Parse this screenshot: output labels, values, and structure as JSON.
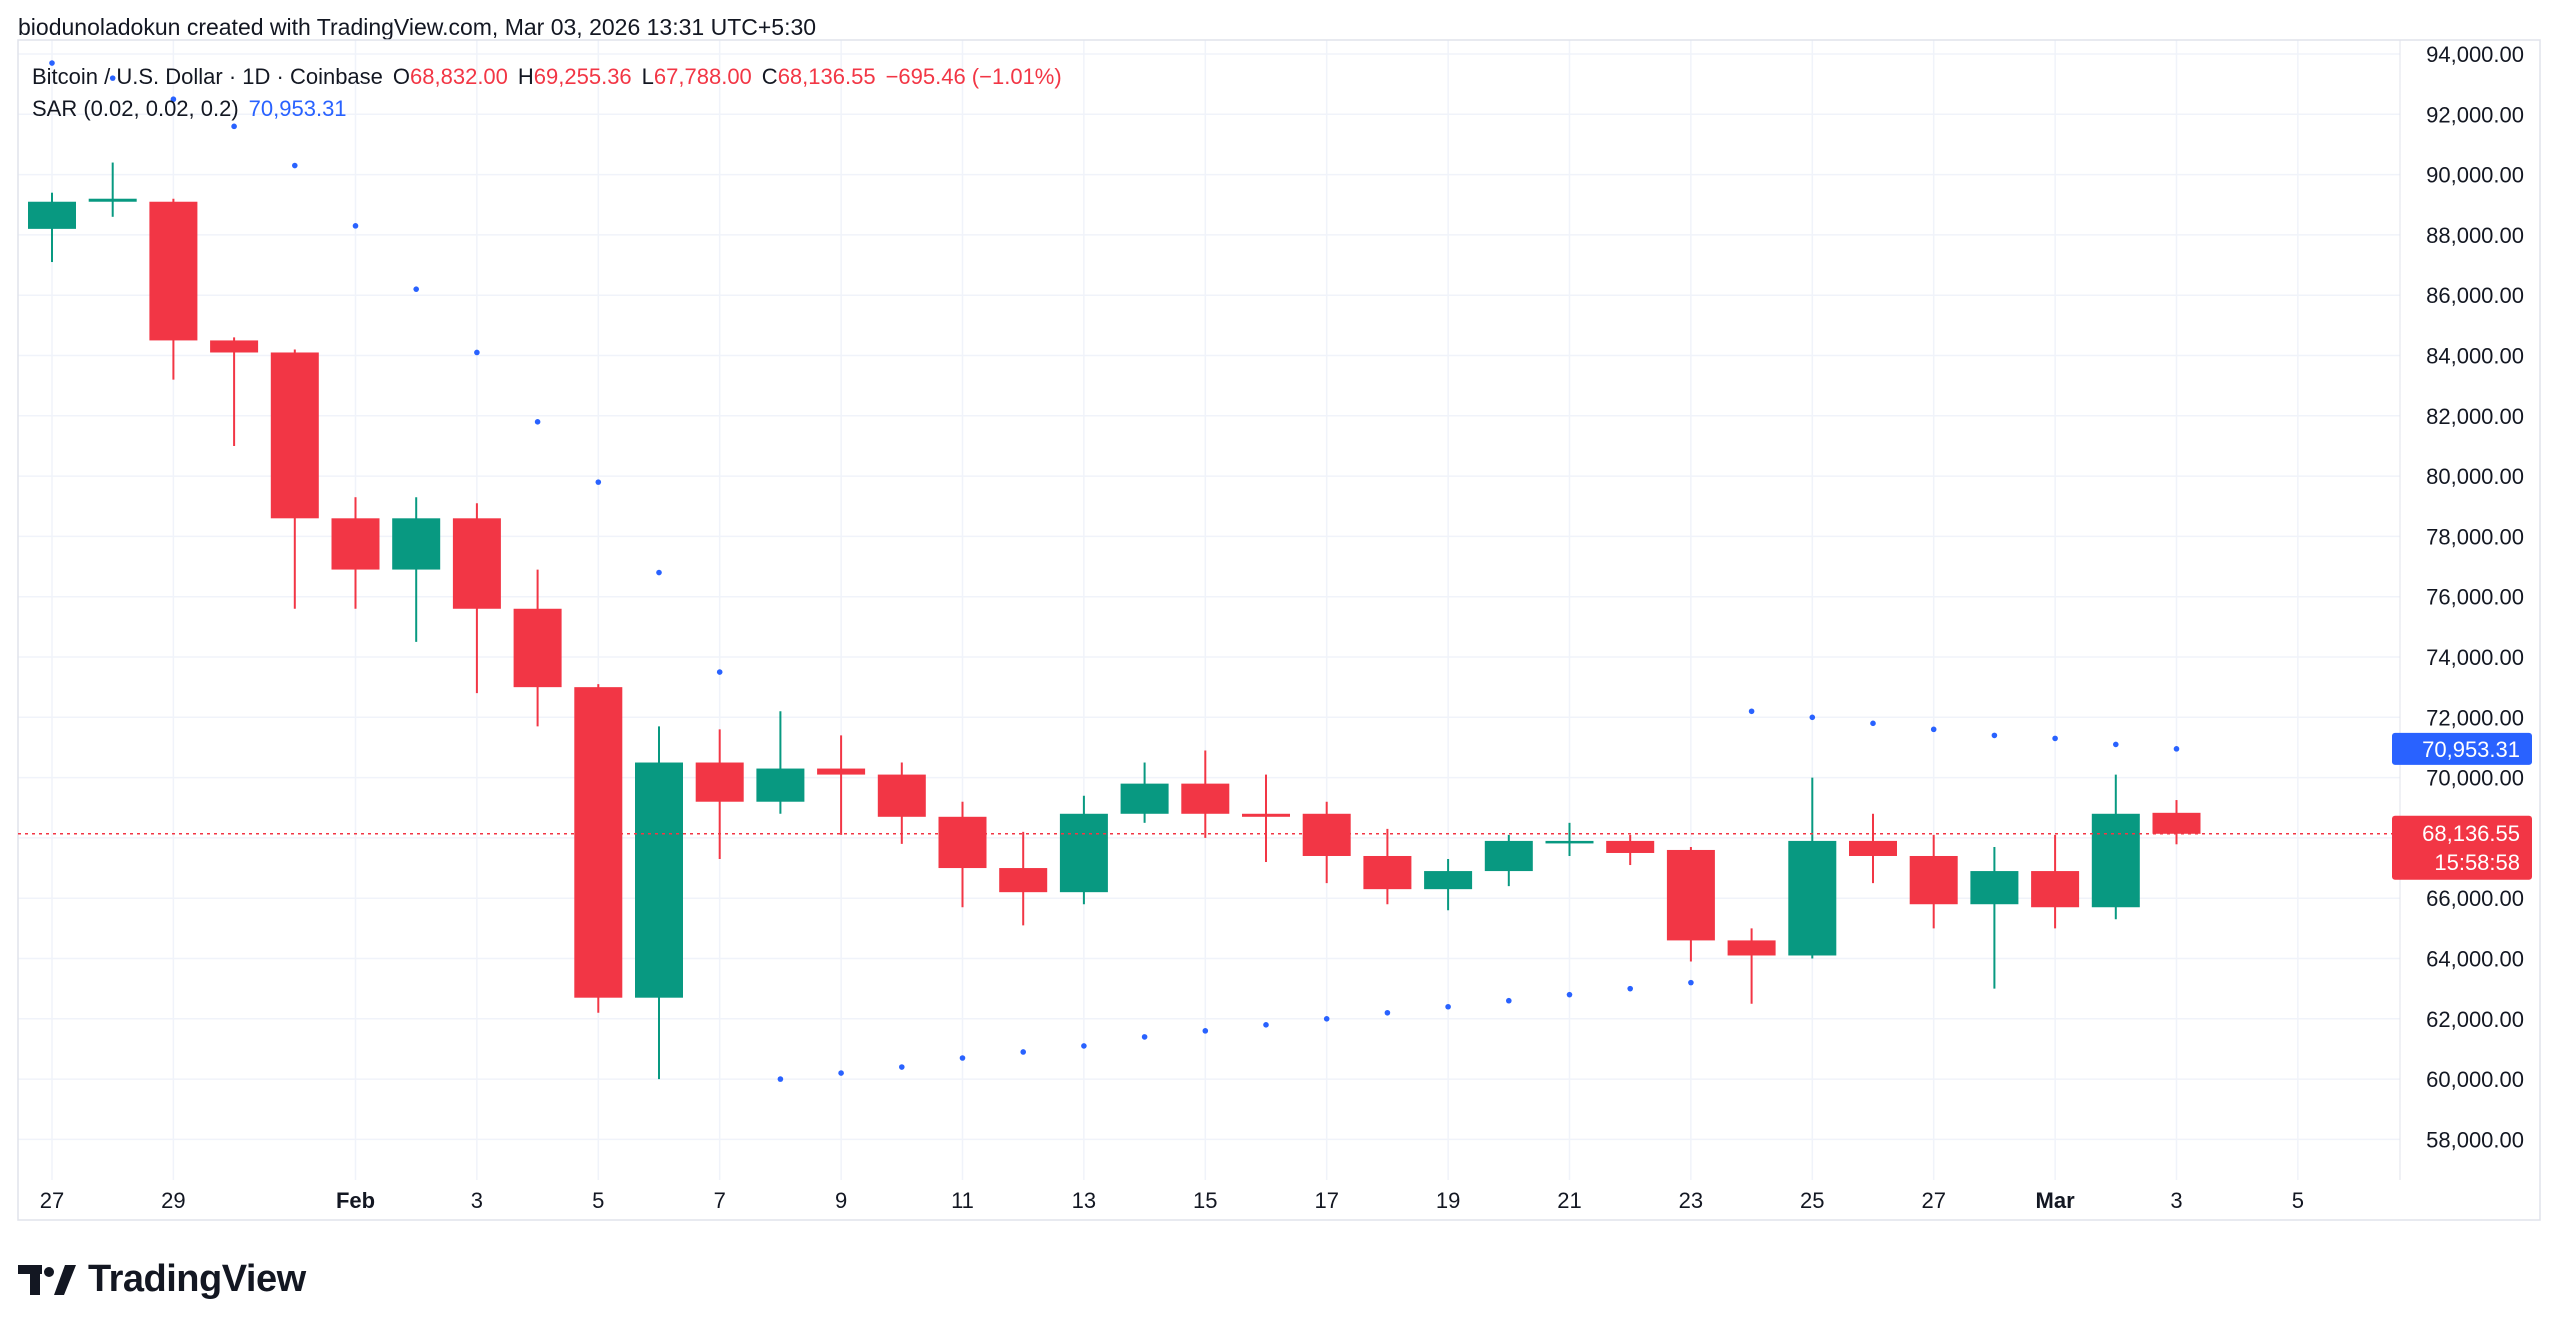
{
  "attribution": "biodunoladokun created with TradingView.com, Mar 03, 2026 13:31 UTC+5:30",
  "legend": {
    "symbol": "Bitcoin / U.S. Dollar · 1D · Coinbase",
    "o_label": "O",
    "o_value": "68,832.00",
    "h_label": "H",
    "h_value": "69,255.36",
    "l_label": "L",
    "l_value": "67,788.00",
    "c_label": "C",
    "c_value": "68,136.55",
    "change": "−695.46 (−1.01%)",
    "indicator": "SAR (0.02, 0.02, 0.2)",
    "indicator_value": "70,953.31"
  },
  "price_tags": {
    "sar": "70,953.31",
    "last": "68,136.55",
    "countdown": "15:58:58"
  },
  "logo": {
    "text": "TradingView"
  },
  "colors": {
    "up": "#089981",
    "down": "#f23645",
    "sar": "#2962ff",
    "grid": "#f0f3fa"
  },
  "chart_data": {
    "type": "candlestick",
    "y_ticks": [
      "94,000.00",
      "92,000.00",
      "90,000.00",
      "88,000.00",
      "86,000.00",
      "84,000.00",
      "82,000.00",
      "80,000.00",
      "78,000.00",
      "76,000.00",
      "74,000.00",
      "72,000.00",
      "70,000.00",
      "68,000.00",
      "66,000.00",
      "64,000.00",
      "62,000.00",
      "60,000.00",
      "58,000.00"
    ],
    "ylim": [
      56500,
      94500
    ],
    "x_ticks": [
      {
        "label": "27",
        "index": 0
      },
      {
        "label": "29",
        "index": 2
      },
      {
        "label": "Feb",
        "index": 5,
        "bold": true
      },
      {
        "label": "3",
        "index": 7
      },
      {
        "label": "5",
        "index": 9
      },
      {
        "label": "7",
        "index": 11
      },
      {
        "label": "9",
        "index": 13
      },
      {
        "label": "11",
        "index": 15
      },
      {
        "label": "13",
        "index": 17
      },
      {
        "label": "15",
        "index": 19
      },
      {
        "label": "17",
        "index": 21
      },
      {
        "label": "19",
        "index": 23
      },
      {
        "label": "21",
        "index": 25
      },
      {
        "label": "23",
        "index": 27
      },
      {
        "label": "25",
        "index": 29
      },
      {
        "label": "27",
        "index": 31
      },
      {
        "label": "Mar",
        "index": 33,
        "bold": true
      },
      {
        "label": "3",
        "index": 35
      },
      {
        "label": "5",
        "index": 37
      }
    ],
    "candles": [
      {
        "o": 88200,
        "h": 89400,
        "l": 87100,
        "c": 89100
      },
      {
        "o": 89100,
        "h": 90400,
        "l": 88600,
        "c": 89200
      },
      {
        "o": 89100,
        "h": 89200,
        "l": 83200,
        "c": 84500
      },
      {
        "o": 84500,
        "h": 84600,
        "l": 81000,
        "c": 84100
      },
      {
        "o": 84100,
        "h": 84200,
        "l": 75600,
        "c": 78600
      },
      {
        "o": 78600,
        "h": 79300,
        "l": 75600,
        "c": 76900
      },
      {
        "o": 76900,
        "h": 79300,
        "l": 74500,
        "c": 78600
      },
      {
        "o": 78600,
        "h": 79100,
        "l": 72800,
        "c": 75600
      },
      {
        "o": 75600,
        "h": 76900,
        "l": 71700,
        "c": 73000
      },
      {
        "o": 73000,
        "h": 73100,
        "l": 62200,
        "c": 62700
      },
      {
        "o": 62700,
        "h": 71700,
        "l": 60000,
        "c": 70500
      },
      {
        "o": 70500,
        "h": 71600,
        "l": 67300,
        "c": 69200
      },
      {
        "o": 69200,
        "h": 72200,
        "l": 68800,
        "c": 70300
      },
      {
        "o": 70300,
        "h": 71400,
        "l": 68100,
        "c": 70100
      },
      {
        "o": 70100,
        "h": 70500,
        "l": 67800,
        "c": 68700
      },
      {
        "o": 68700,
        "h": 69200,
        "l": 65700,
        "c": 67000
      },
      {
        "o": 67000,
        "h": 68200,
        "l": 65100,
        "c": 66200
      },
      {
        "o": 66200,
        "h": 69400,
        "l": 65800,
        "c": 68800
      },
      {
        "o": 68800,
        "h": 70500,
        "l": 68500,
        "c": 69800
      },
      {
        "o": 69800,
        "h": 70900,
        "l": 68000,
        "c": 68800
      },
      {
        "o": 68800,
        "h": 70100,
        "l": 67200,
        "c": 68700
      },
      {
        "o": 68800,
        "h": 69200,
        "l": 66500,
        "c": 67400
      },
      {
        "o": 67400,
        "h": 68300,
        "l": 65800,
        "c": 66300
      },
      {
        "o": 66300,
        "h": 67300,
        "l": 65600,
        "c": 66900
      },
      {
        "o": 66900,
        "h": 68100,
        "l": 66400,
        "c": 67900
      },
      {
        "o": 67900,
        "h": 68500,
        "l": 67400,
        "c": 67900
      },
      {
        "o": 67900,
        "h": 68100,
        "l": 67100,
        "c": 67500
      },
      {
        "o": 67600,
        "h": 67700,
        "l": 63900,
        "c": 64600
      },
      {
        "o": 64600,
        "h": 65000,
        "l": 62500,
        "c": 64100
      },
      {
        "o": 64100,
        "h": 70000,
        "l": 64000,
        "c": 67900
      },
      {
        "o": 67900,
        "h": 68800,
        "l": 66500,
        "c": 67400
      },
      {
        "o": 67400,
        "h": 68100,
        "l": 65000,
        "c": 65800
      },
      {
        "o": 65800,
        "h": 67700,
        "l": 63000,
        "c": 66900
      },
      {
        "o": 66900,
        "h": 68100,
        "l": 65000,
        "c": 65700
      },
      {
        "o": 65700,
        "h": 70100,
        "l": 65300,
        "c": 68800
      },
      {
        "o": 68832,
        "h": 69255.36,
        "l": 67788,
        "c": 68136.55
      }
    ],
    "sar": [
      {
        "i": 0,
        "v": 93700
      },
      {
        "i": 1,
        "v": 93200
      },
      {
        "i": 2,
        "v": 92500
      },
      {
        "i": 3,
        "v": 91600
      },
      {
        "i": 4,
        "v": 90300
      },
      {
        "i": 5,
        "v": 88300
      },
      {
        "i": 6,
        "v": 86200
      },
      {
        "i": 7,
        "v": 84100
      },
      {
        "i": 8,
        "v": 81800
      },
      {
        "i": 9,
        "v": 79800
      },
      {
        "i": 10,
        "v": 76800
      },
      {
        "i": 11,
        "v": 73500
      },
      {
        "i": 12,
        "v": 60000
      },
      {
        "i": 13,
        "v": 60200
      },
      {
        "i": 14,
        "v": 60400
      },
      {
        "i": 15,
        "v": 60700
      },
      {
        "i": 16,
        "v": 60900
      },
      {
        "i": 17,
        "v": 61100
      },
      {
        "i": 18,
        "v": 61400
      },
      {
        "i": 19,
        "v": 61600
      },
      {
        "i": 20,
        "v": 61800
      },
      {
        "i": 21,
        "v": 62000
      },
      {
        "i": 22,
        "v": 62200
      },
      {
        "i": 23,
        "v": 62400
      },
      {
        "i": 24,
        "v": 62600
      },
      {
        "i": 25,
        "v": 62800
      },
      {
        "i": 26,
        "v": 63000
      },
      {
        "i": 27,
        "v": 63200
      },
      {
        "i": 28,
        "v": 72200
      },
      {
        "i": 29,
        "v": 72000
      },
      {
        "i": 30,
        "v": 71800
      },
      {
        "i": 31,
        "v": 71600
      },
      {
        "i": 32,
        "v": 71400
      },
      {
        "i": 33,
        "v": 71300
      },
      {
        "i": 34,
        "v": 71100
      },
      {
        "i": 35,
        "v": 70953.31
      }
    ],
    "last_price": 68136.55
  }
}
